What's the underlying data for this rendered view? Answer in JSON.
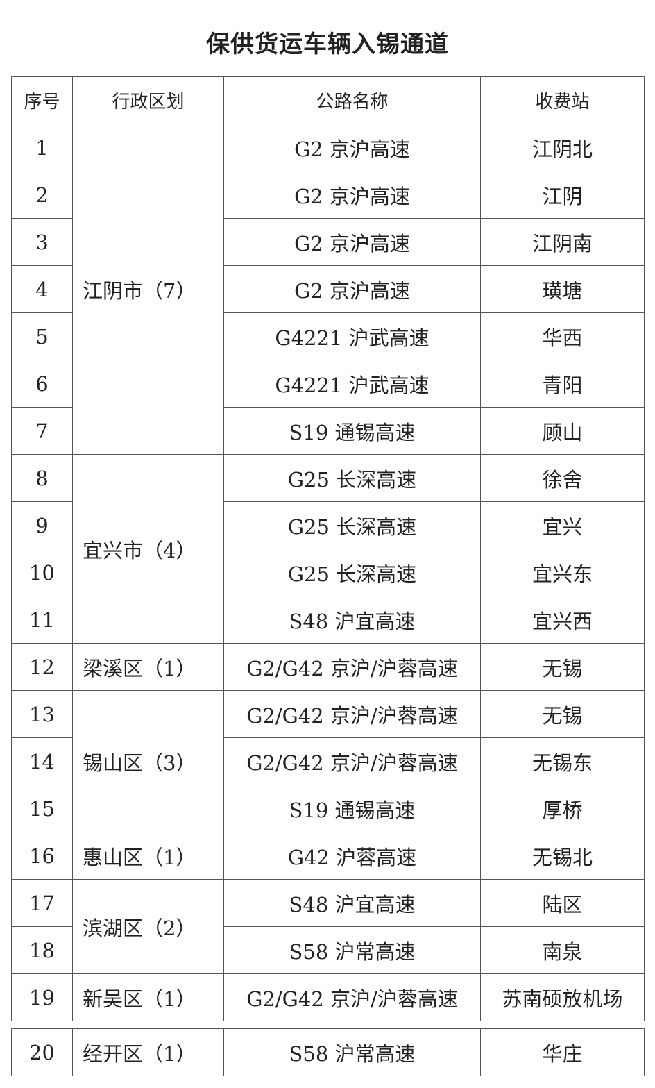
{
  "title": "保供货运车辆入锡通道",
  "headers": [
    "序号",
    "行政区划",
    "公路名称",
    "收费站"
  ],
  "rows": [
    {
      "no": "1",
      "district": "江阴市（7）",
      "road": "G2 京沪高速",
      "station": "江阴北"
    },
    {
      "no": "2",
      "road": "G2 京沪高速",
      "station": "江阴"
    },
    {
      "no": "3",
      "road": "G2 京沪高速",
      "station": "江阴南"
    },
    {
      "no": "4",
      "road": "G2 京沪高速",
      "station": "璜塘"
    },
    {
      "no": "5",
      "road": "G4221 沪武高速",
      "station": "华西"
    },
    {
      "no": "6",
      "road": "G4221 沪武高速",
      "station": "青阳"
    },
    {
      "no": "7",
      "road": "S19 通锡高速",
      "station": "顾山"
    },
    {
      "no": "8",
      "district": "宜兴市（4）",
      "road": "G25 长深高速",
      "station": "徐舍"
    },
    {
      "no": "9",
      "road": "G25 长深高速",
      "station": "宜兴"
    },
    {
      "no": "10",
      "road": "G25 长深高速",
      "station": "宜兴东"
    },
    {
      "no": "11",
      "road": "S48 沪宜高速",
      "station": "宜兴西"
    },
    {
      "no": "12",
      "district": "梁溪区（1）",
      "road": "G2/G42 京沪/沪蓉高速",
      "station": "无锡"
    },
    {
      "no": "13",
      "district": "锡山区（3）",
      "road": "G2/G42 京沪/沪蓉高速",
      "station": "无锡"
    },
    {
      "no": "14",
      "road": "G2/G42 京沪/沪蓉高速",
      "station": "无锡东"
    },
    {
      "no": "15",
      "road": "S19 通锡高速",
      "station": "厚桥"
    },
    {
      "no": "16",
      "district": "惠山区（1）",
      "road": "G42 沪蓉高速",
      "station": "无锡北"
    },
    {
      "no": "17",
      "district": "滨湖区（2）",
      "road": "S48 沪宜高速",
      "station": "陆区"
    },
    {
      "no": "18",
      "road": "S58 沪常高速",
      "station": "南泉"
    },
    {
      "no": "19",
      "district": "新吴区（1）",
      "road": "G2/G42 京沪/沪蓉高速",
      "station": "苏南硕放机场"
    },
    {
      "no": "20",
      "district": "经开区（1）",
      "road": "S58 沪常高速",
      "station": "华庄"
    }
  ]
}
